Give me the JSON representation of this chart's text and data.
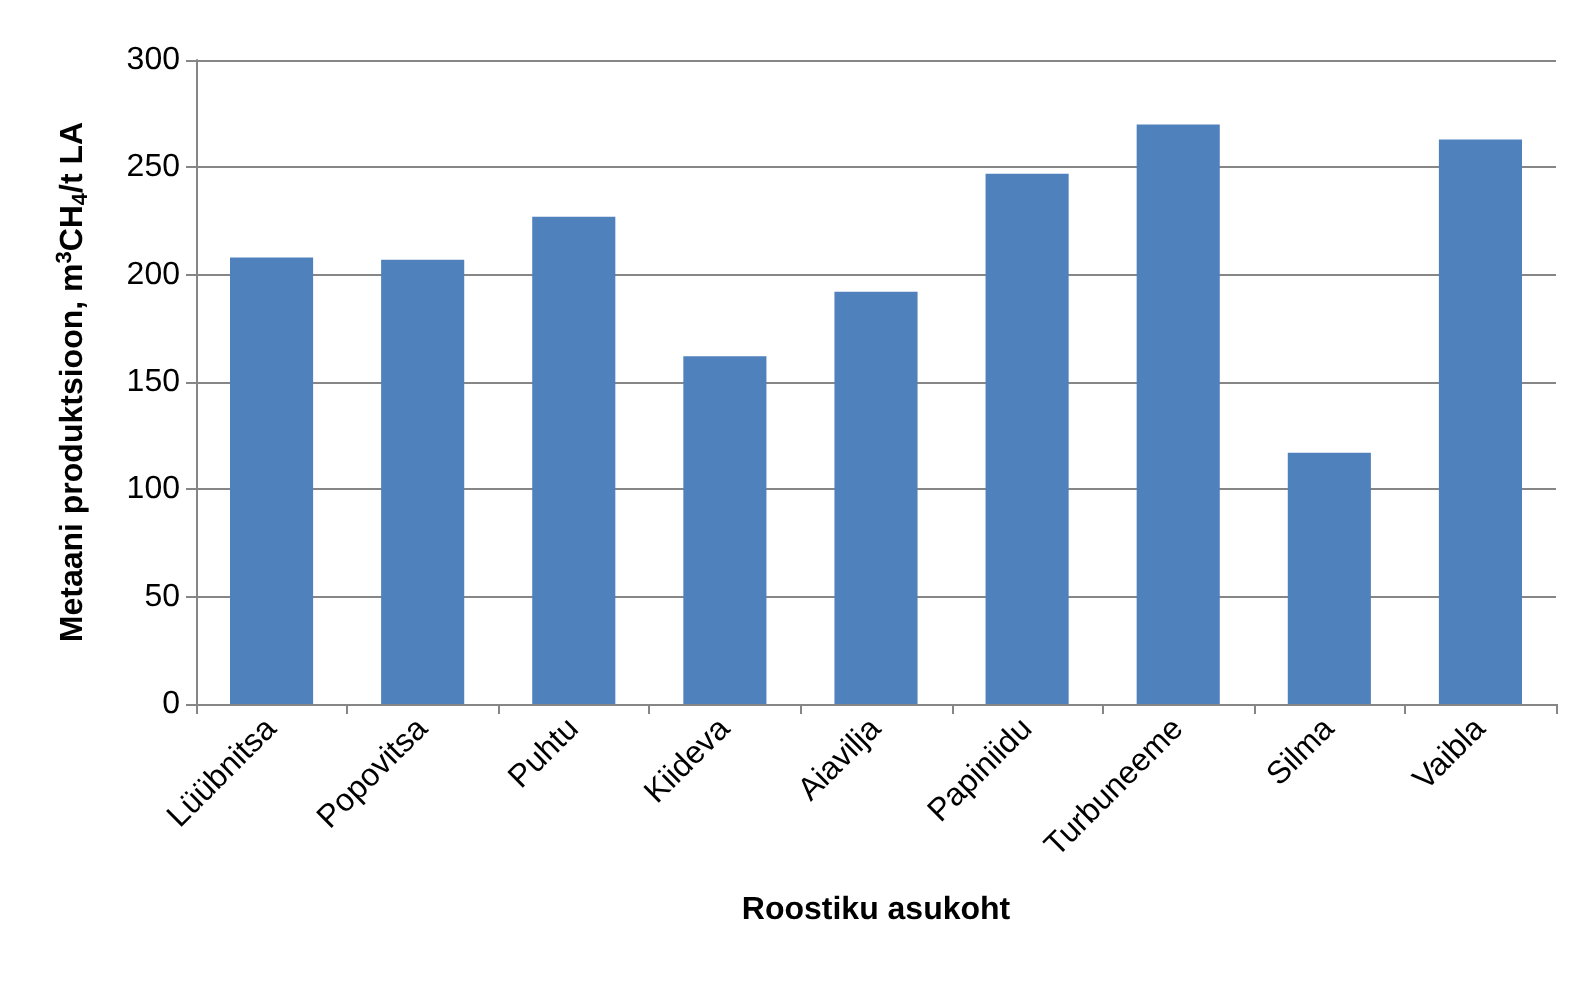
{
  "chart_data": {
    "type": "bar",
    "xlabel": "Roostiku asukoht",
    "ylabel": "Metaani produktsioon, m$^{3}$CH$_{4}$/t LA",
    "categories": [
      "Lüübnitsa",
      "Popovitsa",
      "Puhtu",
      "Kiideva",
      "Aiavilja",
      "Papiniidu",
      "Turbuneeme",
      "Silma",
      "Vaibla"
    ],
    "values": [
      208,
      207,
      227,
      162,
      192,
      247,
      270,
      117,
      263
    ],
    "color": "#4f81bd",
    "ylim": [
      0,
      300
    ],
    "yticks": [
      0,
      50,
      100,
      150,
      200,
      250,
      300
    ],
    "grid": "y"
  }
}
